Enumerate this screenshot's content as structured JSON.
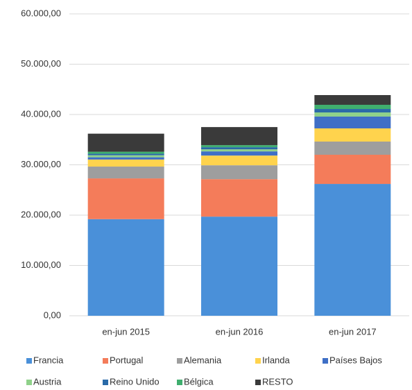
{
  "chart_data": {
    "type": "stacked_bar",
    "categories": [
      "en-jun 2015",
      "en-jun 2016",
      "en-jun 2017"
    ],
    "series": [
      {
        "name": "Francia",
        "color": "#4a90d9",
        "values": [
          19200,
          19700,
          26200
        ]
      },
      {
        "name": "Portugal",
        "color": "#f47c5a",
        "values": [
          8100,
          7450,
          5800
        ]
      },
      {
        "name": "Alemania",
        "color": "#9e9e9e",
        "values": [
          2350,
          2760,
          2620
        ]
      },
      {
        "name": "Irlanda",
        "color": "#ffd34d",
        "values": [
          1400,
          1930,
          2620
        ]
      },
      {
        "name": "Países Bajos",
        "color": "#3f6fc6",
        "values": [
          450,
          830,
          2350
        ]
      },
      {
        "name": "Austria",
        "color": "#8fd18a",
        "values": [
          400,
          410,
          820
        ]
      },
      {
        "name": "Reino Unido",
        "color": "#2a6aa8",
        "values": [
          300,
          420,
          690
        ]
      },
      {
        "name": "Bélgica",
        "color": "#3fae6e",
        "values": [
          400,
          410,
          830
        ]
      },
      {
        "name": "RESTO",
        "color": "#3a3a3a",
        "values": [
          3590,
          3590,
          1930
        ]
      }
    ],
    "ylim": [
      0,
      60000
    ],
    "yticks": [
      {
        "value": 0,
        "label": "0,00"
      },
      {
        "value": 10000,
        "label": "10.000,00"
      },
      {
        "value": 20000,
        "label": "20.000,00"
      },
      {
        "value": 30000,
        "label": "30.000,00"
      },
      {
        "value": 40000,
        "label": "40.000,00"
      },
      {
        "value": 50000,
        "label": "50.000,00"
      },
      {
        "value": 60000,
        "label": "60.000,00"
      }
    ],
    "grid": true
  }
}
